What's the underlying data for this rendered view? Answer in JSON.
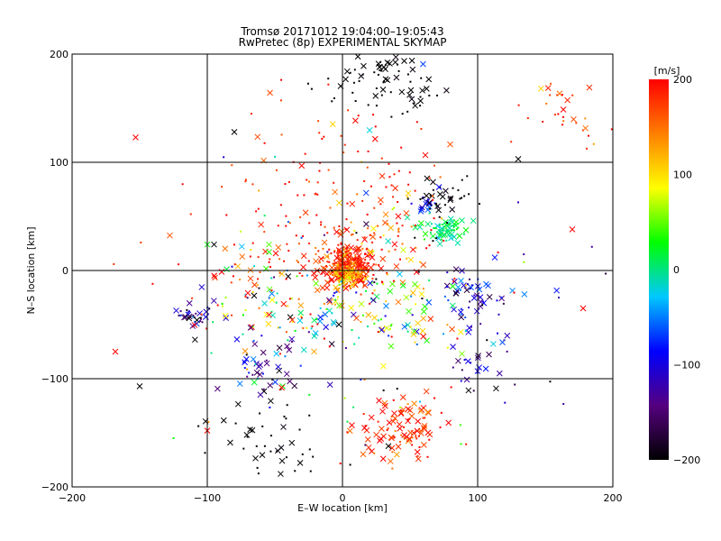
{
  "title_line1": "Tromsø 20171012 19:04:00–19:05:43",
  "title_line2": "RwPretec (8p) EXPERIMENTAL SKYMAP",
  "chart_data": {
    "type": "scatter",
    "xlabel": "E–W location [km]",
    "ylabel": "N–S location [km]",
    "xlim": [
      -200,
      200
    ],
    "ylim": [
      -200,
      200
    ],
    "xticks": [
      -200,
      -100,
      0,
      100,
      200
    ],
    "yticks": [
      -200,
      -100,
      0,
      100,
      200
    ],
    "xtick_labels": [
      "−200",
      "−100",
      "0",
      "100",
      "200"
    ],
    "ytick_labels": [
      "−200",
      "−100",
      "0",
      "100",
      "200"
    ],
    "grid": true,
    "markers": [
      "dot",
      "x"
    ],
    "colorbar": {
      "label": "[m/s]",
      "range": [
        -200,
        200
      ],
      "ticks": [
        200,
        100,
        0,
        -100,
        -200
      ],
      "tick_labels": [
        "200",
        "100",
        "0",
        "−100",
        "−200"
      ],
      "colormap": [
        "#000000",
        "#55007f",
        "#0000ff",
        "#00c8ff",
        "#00ff00",
        "#ffff00",
        "#ff7f00",
        "#ff0000"
      ]
    },
    "clusters": [
      {
        "x": 5,
        "y": 5,
        "sx": 10,
        "sy": 10,
        "n": 260,
        "v": 185,
        "vs": 25,
        "xfrac": 0.35
      },
      {
        "x": 5,
        "y": -5,
        "sx": 6,
        "sy": 6,
        "n": 80,
        "v": 120,
        "vs": 20,
        "xfrac": 0.3
      },
      {
        "x": 75,
        "y": 38,
        "sx": 7,
        "sy": 5,
        "n": 70,
        "v": 5,
        "vs": 15,
        "xfrac": 0.4
      },
      {
        "x": 62,
        "y": 60,
        "sx": 4,
        "sy": 4,
        "n": 18,
        "v": -90,
        "vs": 20,
        "xfrac": 0.5
      },
      {
        "x": 75,
        "y": 65,
        "sx": 12,
        "sy": 10,
        "n": 35,
        "v": -200,
        "vs": 5,
        "xfrac": 0.3
      },
      {
        "x": 45,
        "y": -145,
        "sx": 15,
        "sy": 15,
        "n": 100,
        "v": 180,
        "vs": 25,
        "xfrac": 0.7
      },
      {
        "x": 30,
        "y": 175,
        "sx": 25,
        "sy": 14,
        "n": 70,
        "v": -200,
        "vs": 5,
        "xfrac": 0.4
      },
      {
        "x": -55,
        "y": -90,
        "sx": 12,
        "sy": 15,
        "n": 40,
        "v": -110,
        "vs": 60,
        "xfrac": 0.6
      },
      {
        "x": -110,
        "y": -40,
        "sx": 6,
        "sy": 5,
        "n": 30,
        "v": -150,
        "vs": 50,
        "xfrac": 0.5
      },
      {
        "x": 100,
        "y": -20,
        "sx": 15,
        "sy": 10,
        "n": 50,
        "v": -100,
        "vs": 40,
        "xfrac": 0.5
      },
      {
        "x": 100,
        "y": -80,
        "sx": 12,
        "sy": 20,
        "n": 35,
        "v": -130,
        "vs": 60,
        "xfrac": 0.5
      },
      {
        "x": -50,
        "y": -160,
        "sx": 22,
        "sy": 20,
        "n": 45,
        "v": -200,
        "vs": 5,
        "xfrac": 0.5
      },
      {
        "x": 40,
        "y": -40,
        "sx": 30,
        "sy": 20,
        "n": 90,
        "v": 80,
        "vs": 90,
        "xfrac": 0.5
      },
      {
        "x": -40,
        "y": -40,
        "sx": 30,
        "sy": 25,
        "n": 90,
        "v": 50,
        "vs": 120,
        "xfrac": 0.4
      },
      {
        "x": 0,
        "y": 80,
        "sx": 40,
        "sy": 35,
        "n": 110,
        "v": 190,
        "vs": 20,
        "xfrac": 0.2
      },
      {
        "x": -50,
        "y": 10,
        "sx": 45,
        "sy": 30,
        "n": 80,
        "v": 190,
        "vs": 20,
        "xfrac": 0.25
      },
      {
        "x": 165,
        "y": 145,
        "sx": 15,
        "sy": 15,
        "n": 30,
        "v": 170,
        "vs": 30,
        "xfrac": 0.2
      },
      {
        "x": 30,
        "y": 30,
        "sx": 25,
        "sy": 20,
        "n": 50,
        "v": 150,
        "vs": 50,
        "xfrac": 0.3
      },
      {
        "x": 0,
        "y": -30,
        "sx": 80,
        "sy": 70,
        "n": 120,
        "v": 0,
        "vs": 180,
        "xfrac": 0.4
      }
    ],
    "isolated_points": [
      {
        "x": -153,
        "y": 123,
        "v": 200,
        "m": "x"
      },
      {
        "x": -80,
        "y": 128,
        "v": -200,
        "m": "x"
      },
      {
        "x": 130,
        "y": 103,
        "v": -200,
        "m": "x"
      },
      {
        "x": -168,
        "y": -75,
        "v": 200,
        "m": "x"
      },
      {
        "x": -150,
        "y": -107,
        "v": -200,
        "m": "x"
      },
      {
        "x": -100,
        "y": -148,
        "v": 200,
        "m": "x"
      },
      {
        "x": -100,
        "y": 24,
        "v": 30,
        "m": "x"
      },
      {
        "x": -95,
        "y": 24,
        "v": -200,
        "m": "x"
      },
      {
        "x": 170,
        "y": 38,
        "v": 200,
        "m": "x"
      },
      {
        "x": 178,
        "y": -35,
        "v": 200,
        "m": "x"
      },
      {
        "x": -125,
        "y": -155,
        "v": 30,
        "m": "dot"
      },
      {
        "x": 130,
        "y": 63,
        "v": -120,
        "m": "dot"
      },
      {
        "x": 160,
        "y": -25,
        "v": -120,
        "m": "dot"
      }
    ]
  }
}
